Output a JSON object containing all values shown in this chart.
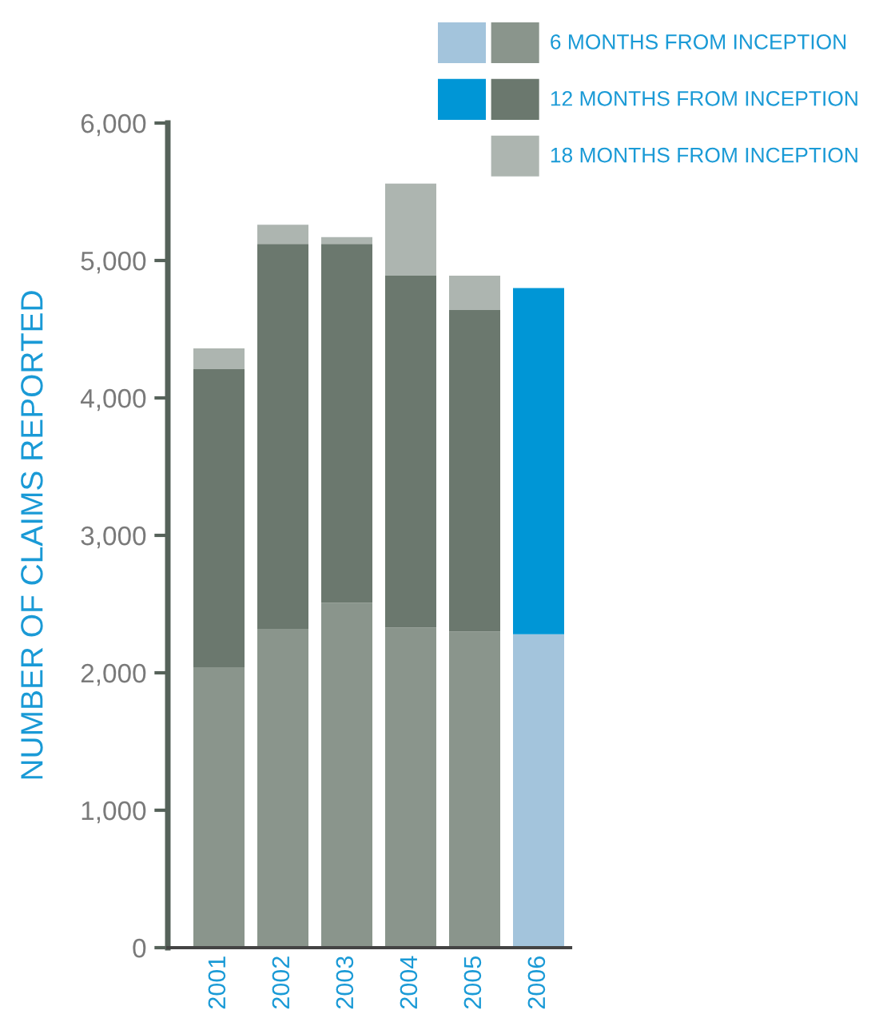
{
  "chart_data": {
    "type": "bar",
    "stacked": true,
    "ylabel": "NUMBER OF CLAIMS REPORTED",
    "categories": [
      "2001",
      "2002",
      "2003",
      "2004",
      "2005",
      "2006"
    ],
    "series": [
      {
        "name": "6 MONTHS FROM INCEPTION",
        "colors": [
          "#8a958c",
          "#8a958c",
          "#8a958c",
          "#8a958c",
          "#8a958c",
          "#a3c4dc"
        ],
        "values": [
          2040,
          2320,
          2510,
          2330,
          2300,
          2280
        ]
      },
      {
        "name": "12 MONTHS FROM INCEPTION",
        "colors": [
          "#6b786e",
          "#6b786e",
          "#6b786e",
          "#6b786e",
          "#6b786e",
          "#0096d6"
        ],
        "values": [
          2170,
          2800,
          2610,
          2560,
          2340,
          2520
        ]
      },
      {
        "name": "18 MONTHS FROM INCEPTION",
        "colors": [
          "#adb5b0",
          "#adb5b0",
          "#adb5b0",
          "#adb5b0",
          "#adb5b0",
          "#adb5b0"
        ],
        "values": [
          150,
          140,
          50,
          670,
          250,
          null
        ]
      }
    ],
    "ylim": [
      0,
      6000
    ],
    "yticks": [
      {
        "value": 0,
        "label": "0"
      },
      {
        "value": 1000,
        "label": "1,000"
      },
      {
        "value": 2000,
        "label": "2,000"
      },
      {
        "value": 3000,
        "label": "3,000"
      },
      {
        "value": 4000,
        "label": "4,000"
      },
      {
        "value": 5000,
        "label": "5,000"
      },
      {
        "value": 6000,
        "label": "6,000"
      }
    ],
    "grid": false,
    "legend": "top right"
  }
}
